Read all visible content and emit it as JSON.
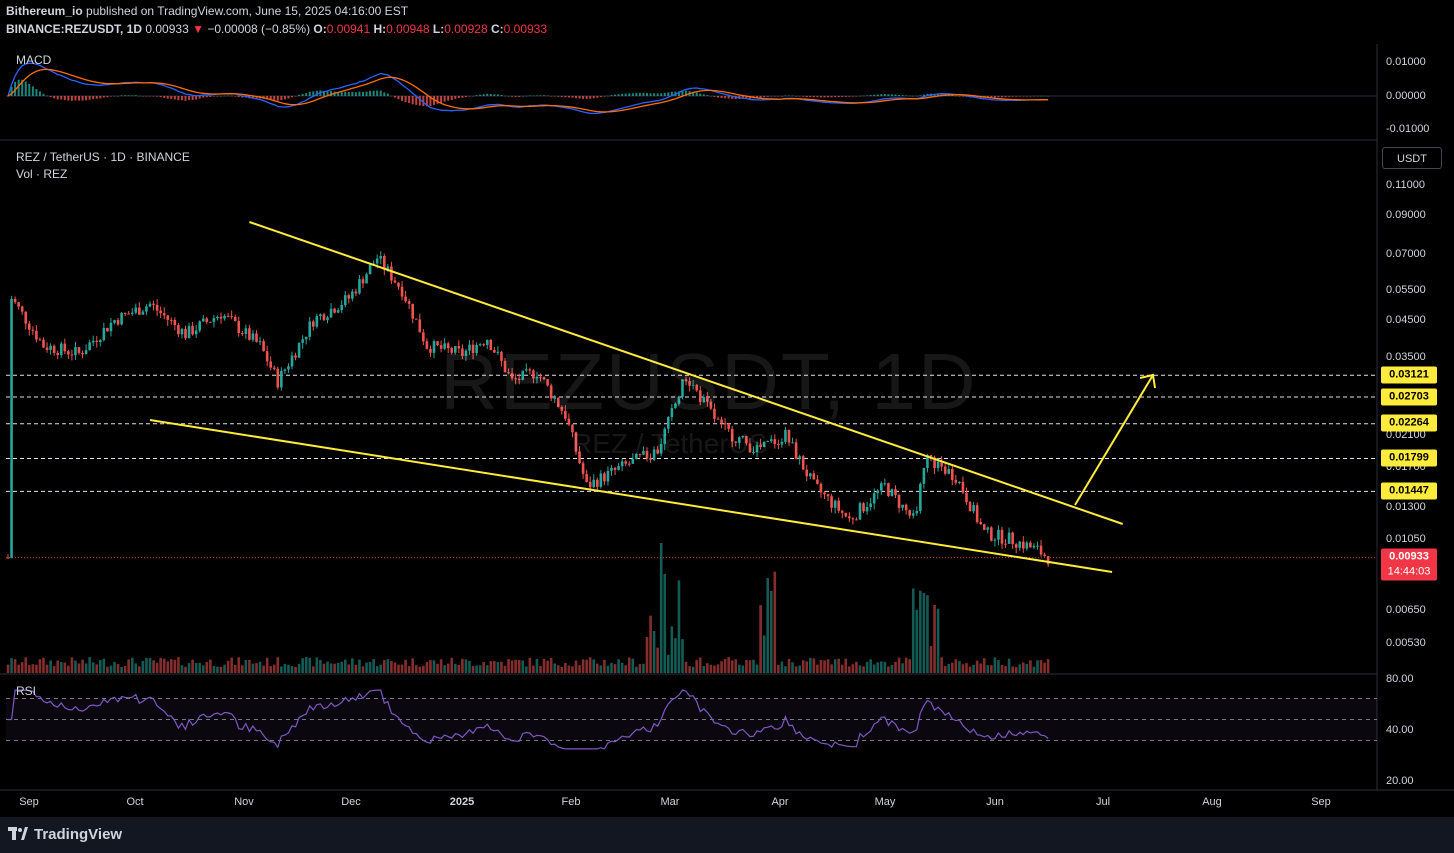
{
  "header": {
    "publisher": "Bithereum_io",
    "published_text": " published on TradingView.com, June 15, 2025 04:16:00 EST",
    "symbol_interval": "BINANCE:REZUSDT, 1D",
    "last_price": "0.00933",
    "change_arrow": "▼",
    "change_text": "−0.00008 (−0.85%)",
    "o_label": "O:",
    "o_value": "0.00941",
    "h_label": "H:",
    "h_value": "0.00948",
    "l_label": "L:",
    "l_value": "0.00928",
    "c_label": "C:",
    "c_value": "0.00933"
  },
  "macd_pane": {
    "label": "MACD",
    "y_ticks": [
      "0.01000",
      "0.00000",
      "-0.01000"
    ]
  },
  "price_pane": {
    "title": "REZ / TetherUS · 1D · BINANCE",
    "volume_label": "Vol · REZ",
    "currency_button": "USDT",
    "watermark_main": "REZUSDT, 1D",
    "watermark_sub": "REZ / TetherUS",
    "y_ticks": [
      "0.11000",
      "0.09000",
      "0.07000",
      "0.05500",
      "0.04500",
      "0.03500",
      "0.02100",
      "0.01700",
      "0.01300",
      "0.01050",
      "0.00650",
      "0.00530"
    ],
    "level_labels": [
      "0.03121",
      "0.02703",
      "0.02264",
      "0.01799",
      "0.01447"
    ],
    "current_price_label": "0.00933",
    "countdown_label": "14:44:03"
  },
  "rsi_pane": {
    "label": "RSI",
    "y_ticks": [
      "80.00",
      "40.00",
      "20.00"
    ]
  },
  "time_axis": [
    "Sep",
    "Oct",
    "Nov",
    "Dec",
    "2025",
    "Feb",
    "Mar",
    "Apr",
    "May",
    "Jun",
    "Jul",
    "Aug",
    "Sep"
  ],
  "footer": {
    "brand": "TradingView"
  },
  "colors": {
    "up": "#26a69a",
    "down": "#ef5350",
    "trendline": "#ffeb3b",
    "macd_line": "#2962ff",
    "signal_line": "#ff6d00",
    "rsi_line": "#7e57c2"
  },
  "chart_data": {
    "type": "candlestick",
    "symbol": "BINANCE:REZUSDT",
    "interval": "1D",
    "x_range": [
      "Sep",
      "Sep"
    ],
    "y_scale": "log",
    "last_close": 0.00933,
    "horizontal_levels": [
      0.03121,
      0.02703,
      0.02264,
      0.01799,
      0.01447
    ],
    "pattern": "falling wedge",
    "close_path": [
      [
        "Aug-27",
        0.052
      ],
      [
        "Sep-05",
        0.038
      ],
      [
        "Sep-15",
        0.036
      ],
      [
        "Sep-25",
        0.045
      ],
      [
        "Oct-05",
        0.05
      ],
      [
        "Oct-15",
        0.041
      ],
      [
        "Oct-25",
        0.047
      ],
      [
        "Nov-05",
        0.038
      ],
      [
        "Nov-10",
        0.03
      ],
      [
        "Nov-20",
        0.045
      ],
      [
        "Nov-30",
        0.052
      ],
      [
        "Dec-08",
        0.068
      ],
      [
        "Dec-15",
        0.055
      ],
      [
        "Dec-22",
        0.038
      ],
      [
        "Jan-01",
        0.036
      ],
      [
        "Jan-08",
        0.04
      ],
      [
        "Jan-15",
        0.03
      ],
      [
        "Jan-22",
        0.032
      ],
      [
        "Jan-30",
        0.024
      ],
      [
        "Feb-05",
        0.015
      ],
      [
        "Feb-15",
        0.017
      ],
      [
        "Feb-25",
        0.019
      ],
      [
        "Mar-05",
        0.031
      ],
      [
        "Mar-15",
        0.022
      ],
      [
        "Mar-25",
        0.019
      ],
      [
        "Apr-02",
        0.021
      ],
      [
        "Apr-10",
        0.015
      ],
      [
        "Apr-20",
        0.012
      ],
      [
        "Apr-30",
        0.015
      ],
      [
        "May-08",
        0.012
      ],
      [
        "May-12",
        0.018
      ],
      [
        "May-20",
        0.016
      ],
      [
        "May-28",
        0.011
      ],
      [
        "Jun-05",
        0.0105
      ],
      [
        "Jun-12",
        0.0098
      ],
      [
        "Jun-15",
        0.00933
      ]
    ]
  }
}
